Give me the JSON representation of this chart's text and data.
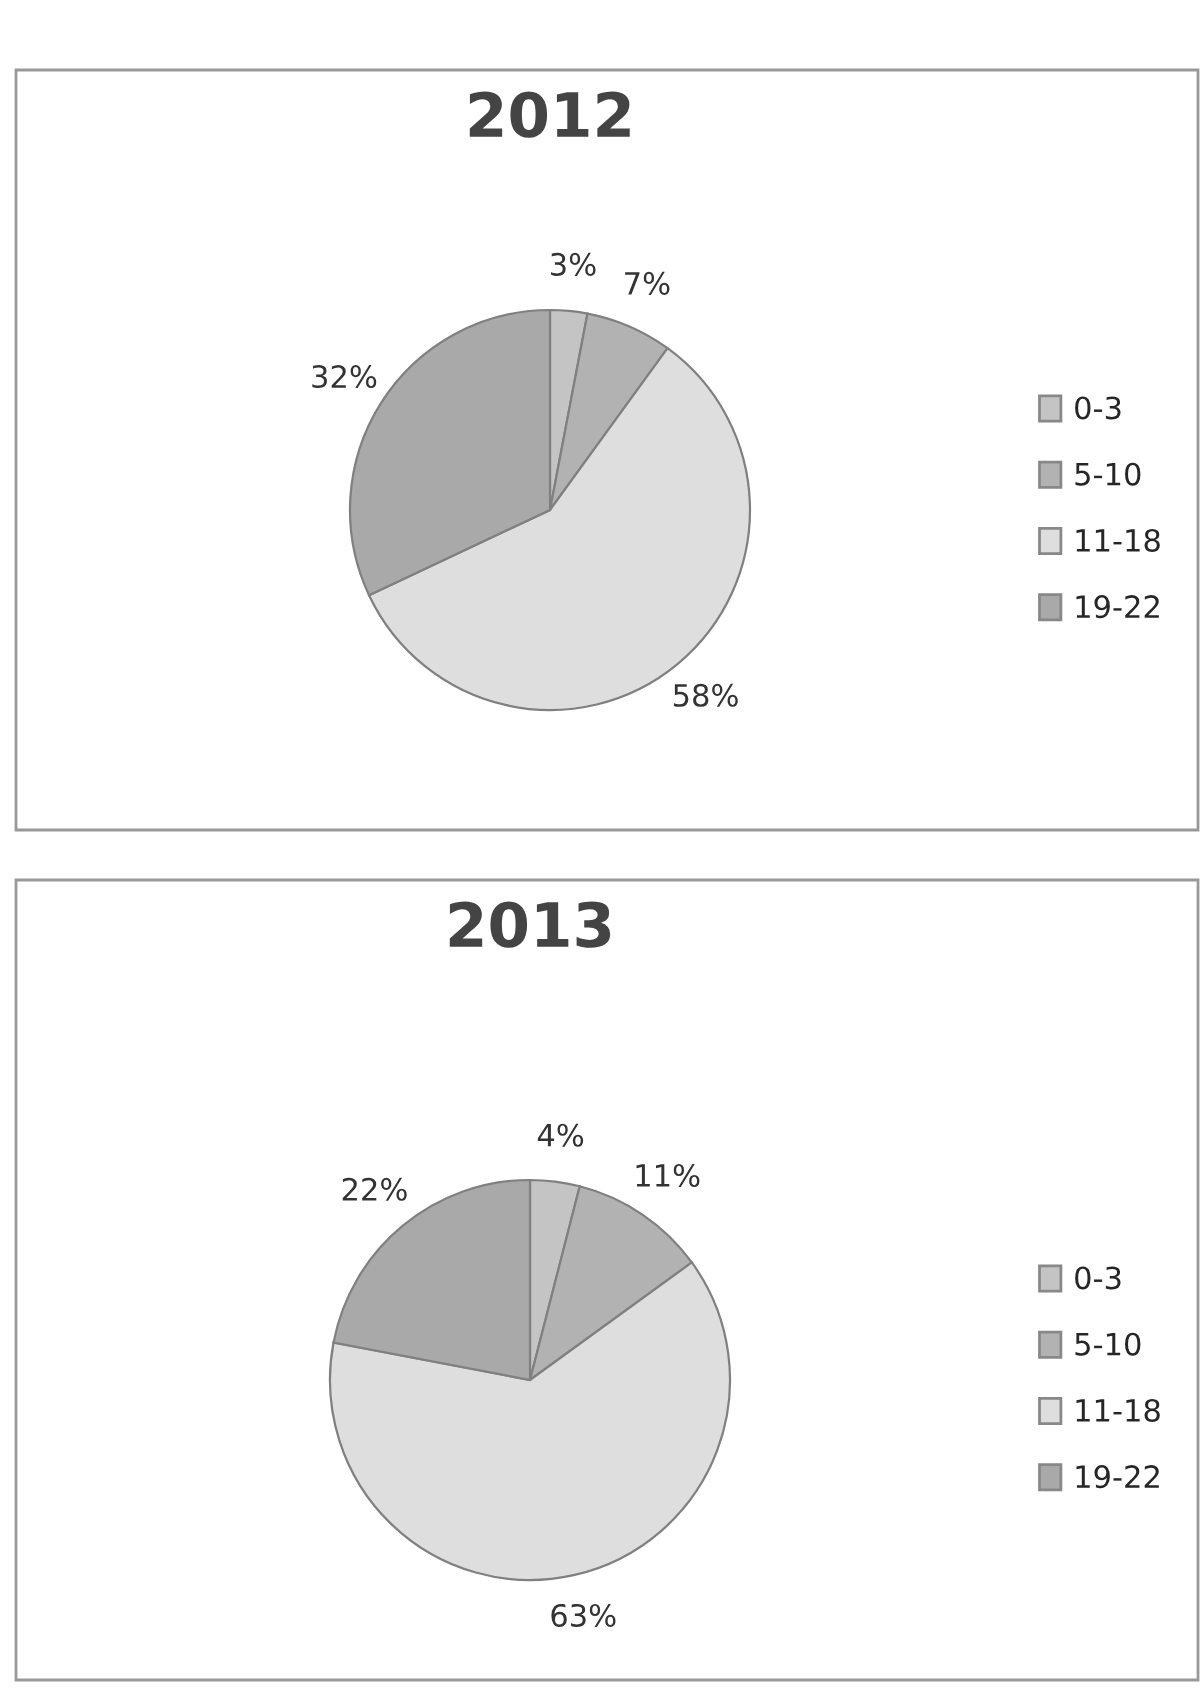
{
  "chart_data": [
    {
      "type": "pie",
      "title": "2012",
      "categories": [
        "0-3",
        "5-10",
        "11-18",
        "19-22"
      ],
      "values": [
        3,
        7,
        58,
        32
      ],
      "value_labels": [
        "3%",
        "7%",
        "58%",
        "32%"
      ],
      "colors": [
        "#c4c4c4",
        "#b2b2b2",
        "#dedede",
        "#a9a9a9"
      ],
      "legend": "right"
    },
    {
      "type": "pie",
      "title": "2013",
      "categories": [
        "0-3",
        "5-10",
        "11-18",
        "19-22"
      ],
      "values": [
        4,
        11,
        63,
        22
      ],
      "value_labels": [
        "4%",
        "11%",
        "63%",
        "22%"
      ],
      "colors": [
        "#c4c4c4",
        "#b2b2b2",
        "#dedede",
        "#a9a9a9"
      ],
      "legend": "right"
    }
  ]
}
